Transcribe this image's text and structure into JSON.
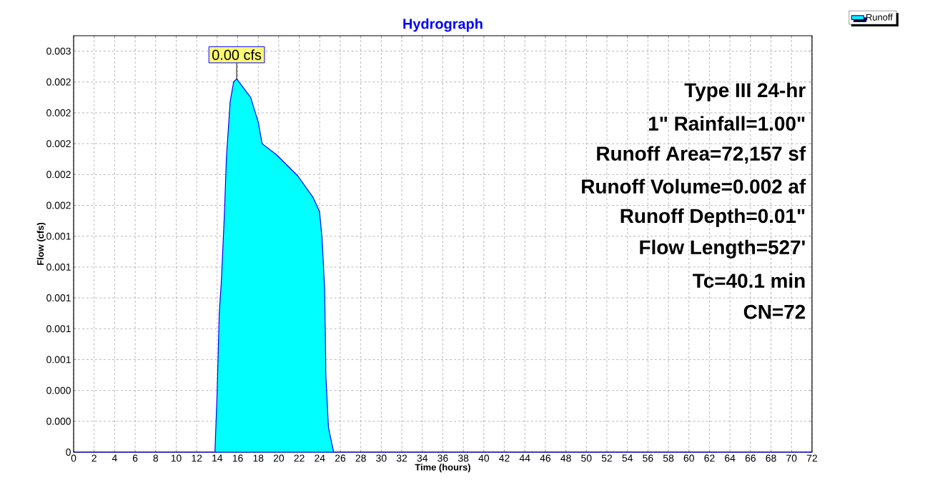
{
  "chart_data": {
    "type": "area",
    "title": "Hydrograph",
    "xlabel": "Time  (hours)",
    "ylabel": "Flow  (cfs)",
    "x": [
      0,
      13.78,
      14.0,
      14.2,
      14.4,
      14.7,
      14.9,
      15.26,
      15.6,
      15.9,
      17.26,
      18.0,
      18.38,
      19.75,
      21.87,
      23.36,
      23.98,
      24.23,
      24.48,
      24.6,
      24.85,
      25.35,
      72
    ],
    "series": [
      {
        "name": "Runoff",
        "color": "#00ffff",
        "values": [
          0,
          0,
          0.0004,
          0.0009,
          0.0011,
          0.00154,
          0.00191,
          0.00227,
          0.0024,
          0.00242,
          0.0023,
          0.00214,
          0.002,
          0.00193,
          0.00179,
          0.00165,
          0.00156,
          0.00138,
          0.00105,
          0.00049,
          0.00016,
          0,
          0
        ]
      }
    ],
    "xlim": [
      0,
      72
    ],
    "ylim": [
      0,
      0.0027
    ],
    "xticks": [
      0,
      2,
      4,
      6,
      8,
      10,
      12,
      14,
      16,
      18,
      20,
      22,
      24,
      26,
      28,
      30,
      32,
      34,
      36,
      38,
      40,
      42,
      44,
      46,
      48,
      50,
      52,
      54,
      56,
      58,
      60,
      62,
      64,
      66,
      68,
      70,
      72
    ],
    "yticks": [
      0,
      {
        "value": 0.0002,
        "label": "0.000"
      },
      {
        "value": 0.0004,
        "label": "0.000"
      },
      {
        "value": 0.0006,
        "label": "0.001"
      },
      {
        "value": 0.0008,
        "label": "0.001"
      },
      {
        "value": 0.001,
        "label": "0.001"
      },
      {
        "value": 0.0012,
        "label": "0.001"
      },
      {
        "value": 0.0014,
        "label": "0.001"
      },
      {
        "value": 0.0016,
        "label": "0.002"
      },
      {
        "value": 0.0018,
        "label": "0.002"
      },
      {
        "value": 0.002,
        "label": "0.002"
      },
      {
        "value": 0.0022,
        "label": "0.002"
      },
      {
        "value": 0.0024,
        "label": "0.002"
      },
      {
        "value": 0.0026,
        "label": "0.003"
      }
    ],
    "grid": true,
    "legend": "top right",
    "annotations": [
      "0.00 cfs",
      "Type III 24-hr",
      "1\" Rainfall=1.00\"",
      "Runoff Area=72,157 sf",
      "Runoff Volume=0.002 af",
      "Runoff Depth=0.01\"",
      "Flow Length=527'",
      "Tc=40.1 min",
      "CN=72"
    ]
  }
}
